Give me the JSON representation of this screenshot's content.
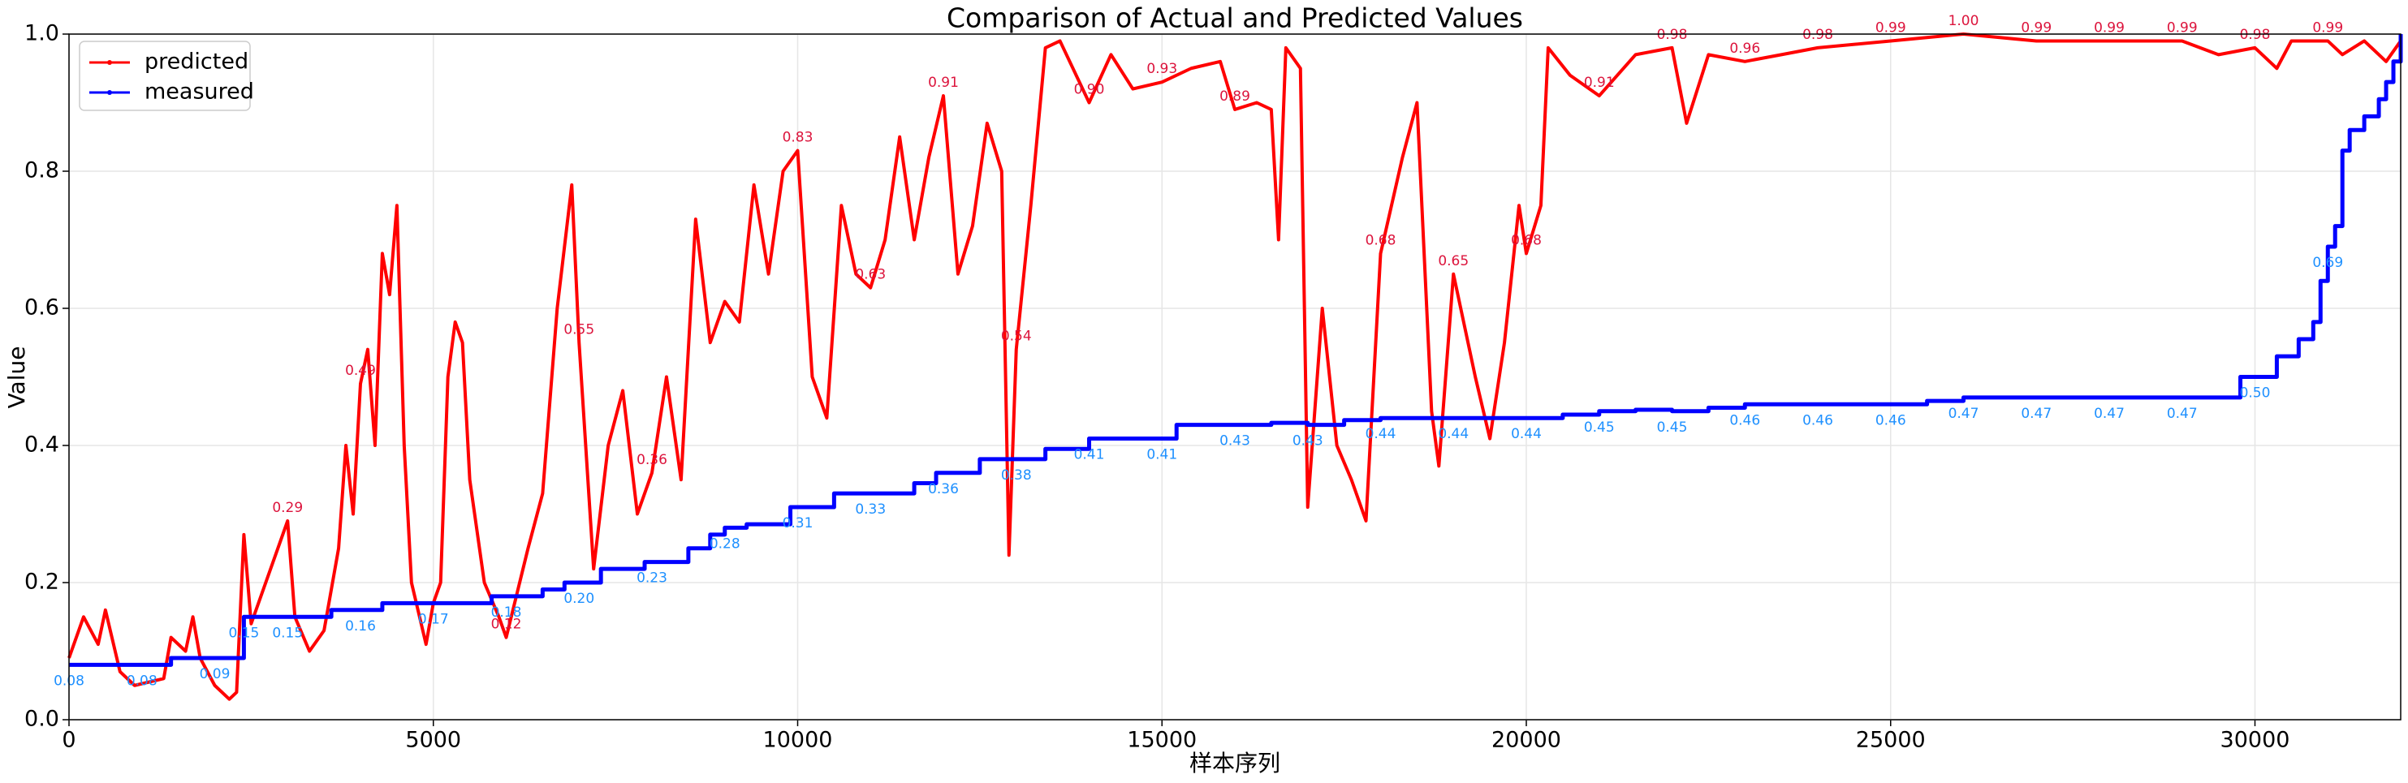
{
  "chart_data": {
    "type": "line",
    "title": "Comparison of Actual and Predicted Values",
    "x_label": "样本序列",
    "y_label": "Value",
    "xlim": [
      0,
      32000
    ],
    "ylim": [
      0,
      1
    ],
    "xticks": [
      0,
      5000,
      10000,
      15000,
      20000,
      25000,
      30000
    ],
    "yticks": [
      {
        "value": 0,
        "label": "0.0"
      },
      {
        "value": 0.2,
        "label": "0.2"
      },
      {
        "value": 0.4,
        "label": "0.4"
      },
      {
        "value": 0.6,
        "label": "0.6"
      },
      {
        "value": 0.8,
        "label": "0.8"
      },
      {
        "value": 1,
        "label": "1.0"
      }
    ],
    "grid": true,
    "legend": "upper left",
    "series": [
      {
        "name": "predicted",
        "color": "#ff0000",
        "label_color": "#dc143c",
        "drawstyle": "default",
        "x": [
          0,
          200,
          400,
          500,
          700,
          900,
          1300,
          1400,
          1600,
          1700,
          1800,
          2000,
          2200,
          2300,
          2400,
          2500,
          2700,
          2900,
          3000,
          3100,
          3300,
          3500,
          3700,
          3800,
          3900,
          4000,
          4100,
          4200,
          4300,
          4400,
          4500,
          4600,
          4700,
          4900,
          5000,
          5100,
          5200,
          5300,
          5400,
          5500,
          5700,
          5900,
          6000,
          6300,
          6500,
          6700,
          6900,
          7000,
          7200,
          7400,
          7600,
          7800,
          8000,
          8200,
          8400,
          8600,
          8800,
          9000,
          9200,
          9400,
          9600,
          9800,
          10000,
          10200,
          10400,
          10600,
          10800,
          11000,
          11200,
          11400,
          11600,
          11800,
          12000,
          12200,
          12400,
          12600,
          12800,
          12900,
          13000,
          13200,
          13400,
          13600,
          14000,
          14300,
          14600,
          15000,
          15400,
          15800,
          16000,
          16300,
          16500,
          16600,
          16700,
          16900,
          17000,
          17200,
          17400,
          17600,
          17800,
          18000,
          18300,
          18500,
          18700,
          18800,
          19000,
          19300,
          19500,
          19700,
          19900,
          20000,
          20200,
          20300,
          20600,
          21000,
          21500,
          22000,
          22200,
          22500,
          23000,
          23500,
          24000,
          25000,
          26000,
          27000,
          28000,
          29000,
          29500,
          30000,
          30300,
          30500,
          31000,
          31200,
          31500,
          31800,
          32000
        ],
        "values": [
          0.09,
          0.15,
          0.11,
          0.16,
          0.07,
          0.05,
          0.06,
          0.12,
          0.1,
          0.15,
          0.09,
          0.05,
          0.03,
          0.04,
          0.27,
          0.14,
          0.2,
          0.26,
          0.29,
          0.15,
          0.1,
          0.13,
          0.25,
          0.4,
          0.3,
          0.49,
          0.54,
          0.4,
          0.68,
          0.62,
          0.75,
          0.4,
          0.2,
          0.11,
          0.17,
          0.2,
          0.5,
          0.58,
          0.55,
          0.35,
          0.2,
          0.15,
          0.12,
          0.25,
          0.33,
          0.6,
          0.78,
          0.55,
          0.22,
          0.4,
          0.48,
          0.3,
          0.36,
          0.5,
          0.35,
          0.73,
          0.55,
          0.61,
          0.58,
          0.78,
          0.65,
          0.8,
          0.83,
          0.5,
          0.44,
          0.75,
          0.65,
          0.63,
          0.7,
          0.85,
          0.7,
          0.82,
          0.91,
          0.65,
          0.72,
          0.87,
          0.8,
          0.24,
          0.54,
          0.75,
          0.98,
          0.99,
          0.9,
          0.97,
          0.92,
          0.93,
          0.95,
          0.96,
          0.89,
          0.9,
          0.89,
          0.7,
          0.98,
          0.95,
          0.31,
          0.6,
          0.4,
          0.35,
          0.29,
          0.68,
          0.82,
          0.9,
          0.45,
          0.37,
          0.65,
          0.5,
          0.41,
          0.55,
          0.75,
          0.68,
          0.75,
          0.98,
          0.94,
          0.91,
          0.97,
          0.98,
          0.87,
          0.97,
          0.96,
          0.97,
          0.98,
          0.99,
          1.0,
          0.99,
          0.99,
          0.99,
          0.97,
          0.98,
          0.95,
          0.99,
          0.99,
          0.97,
          0.99,
          0.96,
          0.99
        ],
        "value_labels": [
          null,
          null,
          null,
          null,
          null,
          null,
          null,
          null,
          null,
          null,
          null,
          null,
          null,
          null,
          null,
          null,
          null,
          null,
          "0.29",
          null,
          null,
          null,
          null,
          null,
          null,
          "0.49",
          null,
          null,
          null,
          null,
          null,
          null,
          null,
          null,
          null,
          null,
          null,
          null,
          null,
          null,
          null,
          null,
          "0.12",
          null,
          null,
          null,
          null,
          "0.55",
          null,
          null,
          null,
          null,
          "0.36",
          null,
          null,
          null,
          null,
          null,
          null,
          null,
          null,
          null,
          "0.83",
          null,
          null,
          null,
          null,
          "0.63",
          null,
          null,
          null,
          null,
          "0.91",
          null,
          null,
          null,
          null,
          null,
          "0.54",
          null,
          null,
          null,
          "0.90",
          null,
          null,
          "0.93",
          null,
          null,
          "0.89",
          null,
          null,
          null,
          null,
          null,
          null,
          null,
          null,
          null,
          null,
          "0.68",
          null,
          null,
          null,
          null,
          "0.65",
          null,
          null,
          null,
          null,
          "0.68",
          null,
          null,
          null,
          "0.91",
          null,
          "0.98",
          null,
          null,
          "0.96",
          null,
          "0.98",
          "0.99",
          "1.00",
          "0.99",
          "0.99",
          "0.99",
          null,
          "0.98",
          null,
          null,
          "0.99",
          null,
          null,
          null,
          null
        ]
      },
      {
        "name": "measured",
        "color": "#0000ff",
        "label_color": "#1e90ff",
        "drawstyle": "steps-post",
        "x": [
          0,
          1000,
          1400,
          2000,
          2400,
          3000,
          3600,
          4000,
          4300,
          5000,
          5800,
          6000,
          6500,
          6800,
          7000,
          7300,
          7900,
          8000,
          8500,
          8800,
          9000,
          9300,
          9900,
          10000,
          10500,
          11000,
          11600,
          11900,
          12000,
          12500,
          13000,
          13400,
          14000,
          15000,
          15200,
          16000,
          16500,
          17000,
          17500,
          18000,
          19000,
          20000,
          20500,
          21000,
          21500,
          22000,
          22500,
          23000,
          24000,
          25000,
          25500,
          26000,
          27000,
          28000,
          29000,
          29800,
          30000,
          30300,
          30600,
          30800,
          30900,
          31000,
          31100,
          31200,
          31300,
          31500,
          31700,
          31800,
          31900,
          32000
        ],
        "values": [
          0.08,
          0.08,
          0.09,
          0.09,
          0.15,
          0.15,
          0.16,
          0.16,
          0.17,
          0.17,
          0.18,
          0.18,
          0.19,
          0.2,
          0.2,
          0.22,
          0.23,
          0.23,
          0.25,
          0.27,
          0.28,
          0.285,
          0.31,
          0.31,
          0.33,
          0.33,
          0.345,
          0.36,
          0.36,
          0.38,
          0.38,
          0.395,
          0.41,
          0.41,
          0.43,
          0.43,
          0.433,
          0.43,
          0.437,
          0.44,
          0.44,
          0.44,
          0.445,
          0.45,
          0.452,
          0.45,
          0.455,
          0.46,
          0.46,
          0.46,
          0.465,
          0.47,
          0.47,
          0.47,
          0.47,
          0.5,
          0.5,
          0.53,
          0.555,
          0.58,
          0.64,
          0.69,
          0.72,
          0.83,
          0.86,
          0.88,
          0.905,
          0.93,
          0.96,
          1.0
        ],
        "value_labels": [
          "0.08",
          "0.08",
          null,
          "0.09",
          "0.15",
          "0.15",
          null,
          "0.16",
          null,
          "0.17",
          null,
          "0.18",
          null,
          null,
          "0.20",
          null,
          null,
          "0.23",
          null,
          null,
          "0.28",
          null,
          null,
          "0.31",
          null,
          "0.33",
          null,
          null,
          "0.36",
          null,
          "0.38",
          null,
          "0.41",
          "0.41",
          null,
          "0.43",
          null,
          "0.43",
          null,
          "0.44",
          "0.44",
          "0.44",
          null,
          "0.45",
          null,
          "0.45",
          null,
          "0.46",
          "0.46",
          "0.46",
          null,
          "0.47",
          "0.47",
          "0.47",
          "0.47",
          null,
          "0.50",
          null,
          null,
          null,
          null,
          "0.69",
          null,
          null,
          null,
          null,
          null,
          null,
          null,
          null
        ]
      }
    ]
  }
}
